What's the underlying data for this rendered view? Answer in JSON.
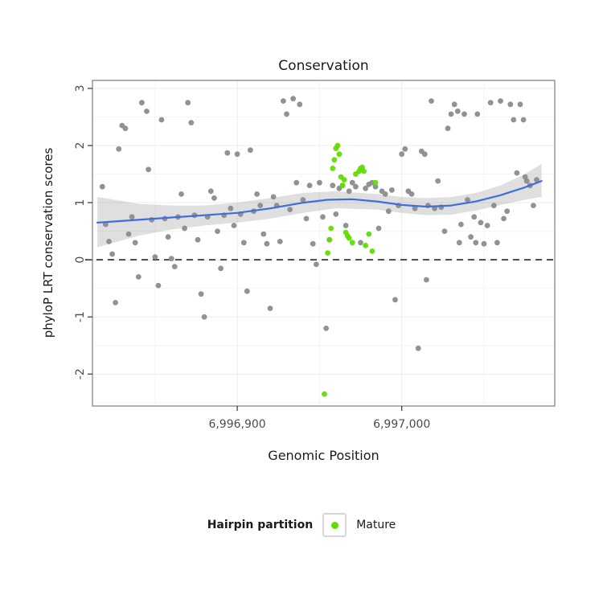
{
  "chart_data": {
    "type": "scatter",
    "title": "Conservation",
    "xlabel": "Genomic Position",
    "ylabel": "phyloP LRT conservation scores",
    "xlim": [
      6996812,
      6997093
    ],
    "ylim": [
      -2.56,
      3.14
    ],
    "grid": "major-and-minor",
    "x_ticks": [
      {
        "value": 6996900,
        "label": "6,996,900"
      },
      {
        "value": 6997000,
        "label": "6,997,000"
      }
    ],
    "y_ticks": [
      {
        "value": -2,
        "label": "-2"
      },
      {
        "value": -1,
        "label": "-1"
      },
      {
        "value": 0,
        "label": "0"
      },
      {
        "value": 1,
        "label": "1"
      },
      {
        "value": 2,
        "label": "2"
      },
      {
        "value": 3,
        "label": "3"
      }
    ],
    "x_minor": [
      6996850,
      6996950,
      6997050
    ],
    "y_minor": [
      -2.5,
      -1.5,
      -0.5,
      0.5,
      1.5,
      2.5
    ],
    "reference_line_y": 0,
    "colors": {
      "gray_points": "#8c8c8c",
      "mature_points": "#61dd00",
      "smooth_line": "#3e6de0",
      "ribbon": "#9b9b9b"
    },
    "legend": {
      "title": "Hairpin partition",
      "position": "bottom",
      "items": [
        {
          "label": "Mature",
          "color": "#61dd00"
        }
      ]
    },
    "series": [
      {
        "name": "Hairpin",
        "color": "#8c8c8c",
        "points": [
          [
            6996818,
            1.28
          ],
          [
            6996820,
            0.62
          ],
          [
            6996822,
            0.32
          ],
          [
            6996824,
            0.1
          ],
          [
            6996826,
            -0.75
          ],
          [
            6996828,
            1.94
          ],
          [
            6996830,
            2.35
          ],
          [
            6996832,
            2.3
          ],
          [
            6996834,
            0.45
          ],
          [
            6996836,
            0.75
          ],
          [
            6996838,
            0.3
          ],
          [
            6996840,
            -0.3
          ],
          [
            6996842,
            2.75
          ],
          [
            6996845,
            2.6
          ],
          [
            6996846,
            1.58
          ],
          [
            6996848,
            0.7
          ],
          [
            6996850,
            0.05
          ],
          [
            6996852,
            -0.45
          ],
          [
            6996854,
            2.45
          ],
          [
            6996856,
            0.72
          ],
          [
            6996858,
            0.4
          ],
          [
            6996860,
            0.02
          ],
          [
            6996862,
            -0.12
          ],
          [
            6996864,
            0.75
          ],
          [
            6996866,
            1.15
          ],
          [
            6996868,
            0.55
          ],
          [
            6996870,
            2.75
          ],
          [
            6996872,
            2.4
          ],
          [
            6996874,
            0.78
          ],
          [
            6996876,
            0.35
          ],
          [
            6996878,
            -0.6
          ],
          [
            6996880,
            -1.0
          ],
          [
            6996882,
            0.75
          ],
          [
            6996884,
            1.2
          ],
          [
            6996886,
            1.08
          ],
          [
            6996888,
            0.5
          ],
          [
            6996890,
            -0.15
          ],
          [
            6996892,
            0.78
          ],
          [
            6996894,
            1.87
          ],
          [
            6996896,
            0.9
          ],
          [
            6996898,
            0.6
          ],
          [
            6996900,
            1.85
          ],
          [
            6996902,
            0.8
          ],
          [
            6996904,
            0.3
          ],
          [
            6996906,
            -0.55
          ],
          [
            6996908,
            1.92
          ],
          [
            6996910,
            0.85
          ],
          [
            6996912,
            1.15
          ],
          [
            6996914,
            0.95
          ],
          [
            6996916,
            0.45
          ],
          [
            6996918,
            0.28
          ],
          [
            6996920,
            -0.85
          ],
          [
            6996922,
            1.1
          ],
          [
            6996924,
            0.95
          ],
          [
            6996926,
            0.32
          ],
          [
            6996928,
            2.78
          ],
          [
            6996930,
            2.55
          ],
          [
            6996932,
            0.88
          ],
          [
            6996934,
            2.82
          ],
          [
            6996936,
            1.35
          ],
          [
            6996938,
            2.72
          ],
          [
            6996940,
            1.05
          ],
          [
            6996942,
            0.72
          ],
          [
            6996944,
            1.3
          ],
          [
            6996946,
            0.28
          ],
          [
            6996948,
            -0.08
          ],
          [
            6996950,
            1.35
          ],
          [
            6996952,
            0.75
          ],
          [
            6996954,
            -1.2
          ],
          [
            6996956,
            0.35
          ],
          [
            6996958,
            1.3
          ],
          [
            6996960,
            0.8
          ],
          [
            6996962,
            1.25
          ],
          [
            6996964,
            1.3
          ],
          [
            6996966,
            0.6
          ],
          [
            6996968,
            1.2
          ],
          [
            6996970,
            1.35
          ],
          [
            6996972,
            1.28
          ],
          [
            6996975,
            0.3
          ],
          [
            6996978,
            1.25
          ],
          [
            6996980,
            1.32
          ],
          [
            6996982,
            1.35
          ],
          [
            6996984,
            1.28
          ],
          [
            6996986,
            0.55
          ],
          [
            6996988,
            1.2
          ],
          [
            6996990,
            1.15
          ],
          [
            6996992,
            0.85
          ],
          [
            6996994,
            1.22
          ],
          [
            6996996,
            -0.7
          ],
          [
            6996998,
            0.95
          ],
          [
            6997000,
            1.85
          ],
          [
            6997002,
            1.94
          ],
          [
            6997004,
            1.2
          ],
          [
            6997006,
            1.15
          ],
          [
            6997008,
            0.9
          ],
          [
            6997010,
            -1.55
          ],
          [
            6997012,
            1.9
          ],
          [
            6997014,
            1.85
          ],
          [
            6997015,
            -0.35
          ],
          [
            6997016,
            0.95
          ],
          [
            6997018,
            2.78
          ],
          [
            6997020,
            0.9
          ],
          [
            6997022,
            1.38
          ],
          [
            6997024,
            0.92
          ],
          [
            6997026,
            0.5
          ],
          [
            6997028,
            2.3
          ],
          [
            6997030,
            2.55
          ],
          [
            6997032,
            2.72
          ],
          [
            6997034,
            2.6
          ],
          [
            6997035,
            0.3
          ],
          [
            6997036,
            0.62
          ],
          [
            6997038,
            2.55
          ],
          [
            6997040,
            1.05
          ],
          [
            6997042,
            0.4
          ],
          [
            6997044,
            0.75
          ],
          [
            6997045,
            0.3
          ],
          [
            6997046,
            2.55
          ],
          [
            6997048,
            0.65
          ],
          [
            6997050,
            0.28
          ],
          [
            6997052,
            0.6
          ],
          [
            6997054,
            2.75
          ],
          [
            6997056,
            0.95
          ],
          [
            6997058,
            0.3
          ],
          [
            6997060,
            2.78
          ],
          [
            6997062,
            0.72
          ],
          [
            6997064,
            0.85
          ],
          [
            6997066,
            2.72
          ],
          [
            6997068,
            2.45
          ],
          [
            6997070,
            1.52
          ],
          [
            6997072,
            2.72
          ],
          [
            6997074,
            2.45
          ],
          [
            6997075,
            1.45
          ],
          [
            6997076,
            1.38
          ],
          [
            6997078,
            1.3
          ],
          [
            6997080,
            0.95
          ],
          [
            6997082,
            1.4
          ]
        ]
      },
      {
        "name": "Mature",
        "color": "#61dd00",
        "points": [
          [
            6996953,
            -2.35
          ],
          [
            6996955,
            0.12
          ],
          [
            6996956,
            0.35
          ],
          [
            6996957,
            0.55
          ],
          [
            6996958,
            1.6
          ],
          [
            6996959,
            1.75
          ],
          [
            6996960,
            1.95
          ],
          [
            6996961,
            2.0
          ],
          [
            6996962,
            1.85
          ],
          [
            6996963,
            1.45
          ],
          [
            6996964,
            1.3
          ],
          [
            6996965,
            1.4
          ],
          [
            6996966,
            0.48
          ],
          [
            6996967,
            0.42
          ],
          [
            6996968,
            0.38
          ],
          [
            6996970,
            0.3
          ],
          [
            6996972,
            1.5
          ],
          [
            6996974,
            1.55
          ],
          [
            6996975,
            1.6
          ],
          [
            6996976,
            1.62
          ],
          [
            6996977,
            1.55
          ],
          [
            6996978,
            0.25
          ],
          [
            6996980,
            0.45
          ],
          [
            6996982,
            0.15
          ],
          [
            6996984,
            1.35
          ]
        ]
      }
    ],
    "smooth": {
      "color": "#3e6de0",
      "points": [
        [
          6996815,
          0.65
        ],
        [
          6996840,
          0.7
        ],
        [
          6996860,
          0.74
        ],
        [
          6996880,
          0.78
        ],
        [
          6996900,
          0.82
        ],
        [
          6996920,
          0.9
        ],
        [
          6996940,
          1.0
        ],
        [
          6996955,
          1.05
        ],
        [
          6996970,
          1.06
        ],
        [
          6996985,
          1.02
        ],
        [
          6997000,
          0.96
        ],
        [
          6997015,
          0.93
        ],
        [
          6997030,
          0.95
        ],
        [
          6997045,
          1.02
        ],
        [
          6997060,
          1.13
        ],
        [
          6997075,
          1.27
        ],
        [
          6997085,
          1.38
        ]
      ],
      "ribbon": {
        "color": "#9b9b9b",
        "opacity": 0.32,
        "upper": [
          [
            6996815,
            1.1
          ],
          [
            6996840,
            0.98
          ],
          [
            6996860,
            0.95
          ],
          [
            6996880,
            0.95
          ],
          [
            6996900,
            1.0
          ],
          [
            6996920,
            1.08
          ],
          [
            6996940,
            1.17
          ],
          [
            6996960,
            1.2
          ],
          [
            6996985,
            1.15
          ],
          [
            6997000,
            1.1
          ],
          [
            6997015,
            1.08
          ],
          [
            6997030,
            1.1
          ],
          [
            6997045,
            1.17
          ],
          [
            6997060,
            1.3
          ],
          [
            6997075,
            1.5
          ],
          [
            6997085,
            1.68
          ]
        ],
        "lower": [
          [
            6996815,
            0.22
          ],
          [
            6996840,
            0.42
          ],
          [
            6996860,
            0.53
          ],
          [
            6996880,
            0.6
          ],
          [
            6996900,
            0.65
          ],
          [
            6996920,
            0.72
          ],
          [
            6996940,
            0.82
          ],
          [
            6996960,
            0.9
          ],
          [
            6996985,
            0.88
          ],
          [
            6997000,
            0.82
          ],
          [
            6997015,
            0.78
          ],
          [
            6997030,
            0.79
          ],
          [
            6997045,
            0.86
          ],
          [
            6997060,
            0.96
          ],
          [
            6997075,
            1.05
          ],
          [
            6997085,
            1.1
          ]
        ]
      }
    }
  }
}
